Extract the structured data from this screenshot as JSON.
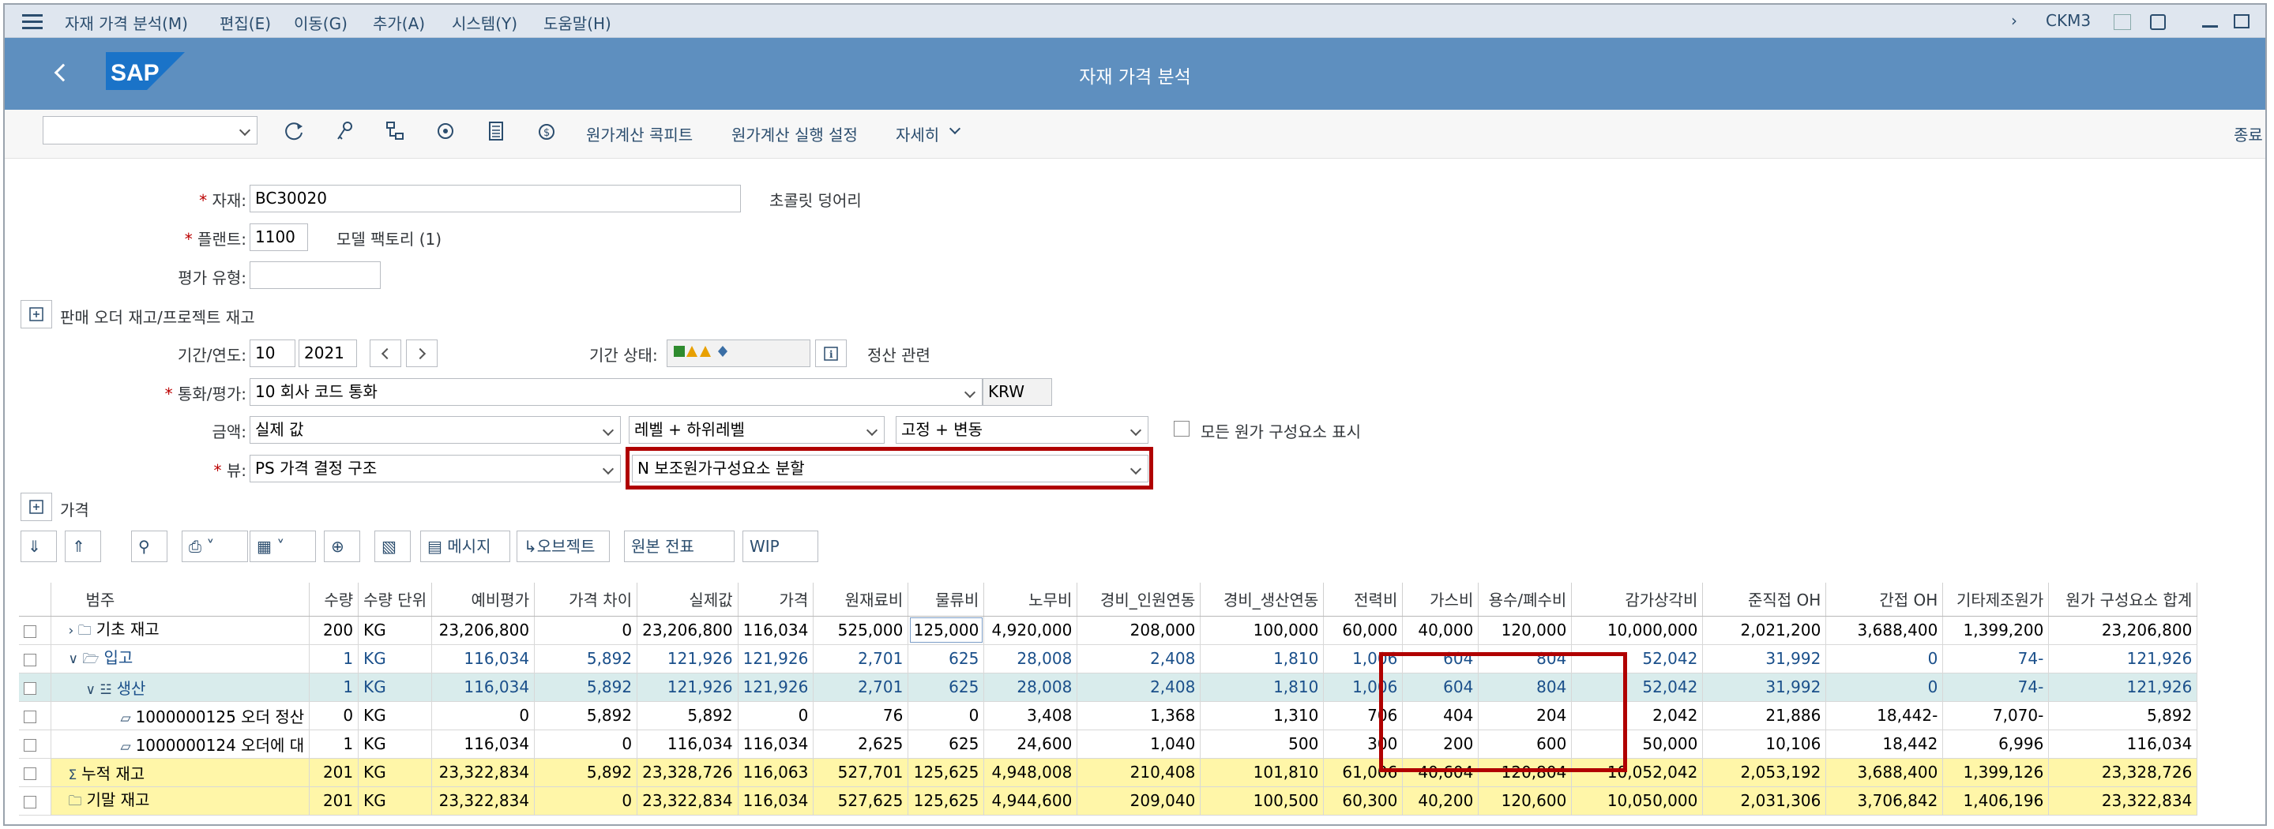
{
  "menu": {
    "items": [
      "자재 가격 분석(M)",
      "편집(E)",
      "이동(G)",
      "추가(A)",
      "시스템(Y)",
      "도움말(H)"
    ],
    "transaction": "CKM3"
  },
  "header": {
    "title": "자재 가격 분석",
    "logo_text": "SAP"
  },
  "toolbar": {
    "cockpit": "원가계산 콕피트",
    "run_settings": "원가계산 실행 설정",
    "more": "자세히",
    "exit": "종료"
  },
  "form": {
    "material_label": "자재:",
    "material_value": "BC30020",
    "material_desc": "초콜릿 덩어리",
    "plant_label": "플랜트:",
    "plant_value": "1100",
    "plant_desc": "모델 팩토리 (1)",
    "valtype_label": "평가 유형:",
    "sales_order_label": "판매 오더 재고/프로젝트 재고",
    "period_label": "기간/연도:",
    "period_value": "10",
    "year_value": "2021",
    "period_status_label": "기간 상태:",
    "settlement_label": "정산 관련",
    "currency_label": "통화/평가:",
    "currency_value": "10 회사 코드 통화",
    "currency_code": "KRW",
    "amount_label": "금액:",
    "amount_value": "실제 값",
    "level_value": "레벨 + 하위레벨",
    "fixvar_value": "고정 + 변동",
    "all_components_label": "모든 원가 구성요소 표시",
    "view_label": "뷰:",
    "view_value": "PS 가격 결정 구조",
    "split_value": "N 보조원가구성요소 분할",
    "price_section": "가격"
  },
  "grid_toolbar": {
    "message": "메시지",
    "object": "오브젝트",
    "source_doc": "원본 전표",
    "wip": "WIP"
  },
  "table": {
    "headers": [
      "범주",
      "수량",
      "수량 단위",
      "예비평가",
      "가격 차이",
      "실제값",
      "가격",
      "원재료비",
      "물류비",
      "노무비",
      "경비_인원연동",
      "경비_생산연동",
      "전력비",
      "가스비",
      "용수/폐수비",
      "감가상각비",
      "준직접 OH",
      "간접 OH",
      "기타제조원가",
      "원가 구성요소 합계"
    ],
    "rows": [
      {
        "cells": [
          "기초 재고",
          "200",
          "KG",
          "23,206,800",
          "0",
          "23,206,800",
          "116,034",
          "525,000",
          "125,000",
          "4,920,000",
          "208,000",
          "100,000",
          "60,000",
          "40,000",
          "120,000",
          "10,000,000",
          "2,021,200",
          "3,688,400",
          "1,399,200",
          "23,206,800"
        ]
      },
      {
        "cells": [
          "입고",
          "1",
          "KG",
          "116,034",
          "5,892",
          "121,926",
          "121,926",
          "2,701",
          "625",
          "28,008",
          "2,408",
          "1,810",
          "1,006",
          "604",
          "804",
          "52,042",
          "31,992",
          "0",
          "74-",
          "121,926"
        ]
      },
      {
        "cells": [
          "생산",
          "1",
          "KG",
          "116,034",
          "5,892",
          "121,926",
          "121,926",
          "2,701",
          "625",
          "28,008",
          "2,408",
          "1,810",
          "1,006",
          "604",
          "804",
          "52,042",
          "31,992",
          "0",
          "74-",
          "121,926"
        ]
      },
      {
        "cells": [
          "1000000125 오더 정산",
          "0",
          "KG",
          "0",
          "5,892",
          "5,892",
          "0",
          "76",
          "0",
          "3,408",
          "1,368",
          "1,310",
          "706",
          "404",
          "204",
          "2,042",
          "21,886",
          "18,442-",
          "7,070-",
          "5,892"
        ]
      },
      {
        "cells": [
          "1000000124 오더에 대",
          "1",
          "KG",
          "116,034",
          "0",
          "116,034",
          "116,034",
          "2,625",
          "625",
          "24,600",
          "1,040",
          "500",
          "300",
          "200",
          "600",
          "50,000",
          "10,106",
          "18,442",
          "6,996",
          "116,034"
        ]
      },
      {
        "cells": [
          "누적 재고",
          "201",
          "KG",
          "23,322,834",
          "5,892",
          "23,328,726",
          "116,063",
          "527,701",
          "125,625",
          "4,948,008",
          "210,408",
          "101,810",
          "61,006",
          "40,604",
          "120,804",
          "10,052,042",
          "2,053,192",
          "3,688,400",
          "1,399,126",
          "23,328,726"
        ]
      },
      {
        "cells": [
          "기말 재고",
          "201",
          "KG",
          "23,322,834",
          "0",
          "23,322,834",
          "116,034",
          "527,625",
          "125,625",
          "4,944,600",
          "209,040",
          "100,500",
          "60,300",
          "40,200",
          "120,600",
          "10,050,000",
          "2,031,306",
          "3,706,842",
          "1,406,196",
          "23,322,834"
        ]
      }
    ]
  }
}
